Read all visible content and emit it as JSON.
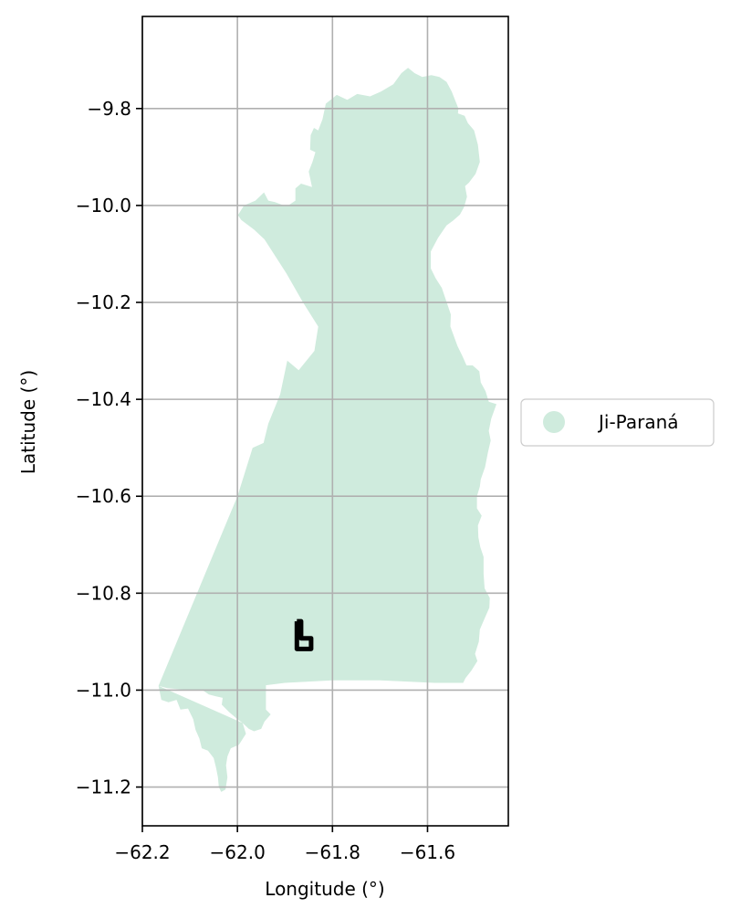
{
  "chart_data": {
    "type": "map",
    "xlabel": "Longitude (°)",
    "ylabel": "Latitude (°)",
    "xlim": [
      -62.2,
      -61.43
    ],
    "ylim": [
      -11.28,
      -9.61
    ],
    "x_ticks": [
      {
        "value": -62.2,
        "label": "−62.2"
      },
      {
        "value": -62.0,
        "label": "−62.0"
      },
      {
        "value": -61.8,
        "label": "−61.8"
      },
      {
        "value": -61.6,
        "label": "−61.6"
      }
    ],
    "y_ticks": [
      {
        "value": -9.8,
        "label": "−9.8"
      },
      {
        "value": -10.0,
        "label": "−10.0"
      },
      {
        "value": -10.2,
        "label": "−10.2"
      },
      {
        "value": -10.4,
        "label": "−10.4"
      },
      {
        "value": -10.6,
        "label": "−10.6"
      },
      {
        "value": -10.8,
        "label": "−10.8"
      },
      {
        "value": -11.0,
        "label": "−11.0"
      },
      {
        "value": -11.2,
        "label": "−11.2"
      }
    ],
    "grid": true,
    "legend": {
      "placement": "right",
      "entries": [
        {
          "label": "Ji-Paraná",
          "color": "#cfebdd"
        }
      ]
    },
    "region": {
      "name": "Ji-Paraná",
      "fill": "#cfebdd",
      "outline": [
        [
          -61.989,
          -11.068
        ],
        [
          -62.0,
          -11.06
        ],
        [
          -62.018,
          -11.045
        ],
        [
          -62.033,
          -11.03
        ],
        [
          -62.031,
          -11.016
        ],
        [
          -62.045,
          -11.013
        ],
        [
          -62.06,
          -11.009
        ],
        [
          -62.075,
          -10.999
        ],
        [
          -62.098,
          -11.001
        ],
        [
          -62.124,
          -10.998
        ],
        [
          -62.148,
          -10.996
        ],
        [
          -62.166,
          -10.991
        ],
        [
          -62.16,
          -11.02
        ],
        [
          -62.145,
          -11.025
        ],
        [
          -62.128,
          -11.02
        ],
        [
          -62.12,
          -11.04
        ],
        [
          -62.104,
          -11.038
        ],
        [
          -62.093,
          -11.06
        ],
        [
          -62.088,
          -11.082
        ],
        [
          -62.08,
          -11.1
        ],
        [
          -62.075,
          -11.12
        ],
        [
          -62.062,
          -11.125
        ],
        [
          -62.05,
          -11.14
        ],
        [
          -62.045,
          -11.16
        ],
        [
          -62.041,
          -11.18
        ],
        [
          -62.039,
          -11.2
        ],
        [
          -62.034,
          -11.21
        ],
        [
          -62.025,
          -11.205
        ],
        [
          -62.021,
          -11.18
        ],
        [
          -62.024,
          -11.155
        ],
        [
          -62.021,
          -11.137
        ],
        [
          -62.014,
          -11.12
        ],
        [
          -61.997,
          -11.113
        ],
        [
          -61.982,
          -11.09
        ],
        [
          -61.989,
          -11.068
        ],
        [
          -62.166,
          -10.991
        ],
        [
          -62.0,
          -10.6
        ],
        [
          -61.968,
          -10.5
        ],
        [
          -61.945,
          -10.49
        ],
        [
          -61.935,
          -10.45
        ],
        [
          -61.91,
          -10.39
        ],
        [
          -61.895,
          -10.32
        ],
        [
          -61.871,
          -10.34
        ],
        [
          -61.838,
          -10.3
        ],
        [
          -61.83,
          -10.25
        ],
        [
          -61.862,
          -10.2
        ],
        [
          -61.897,
          -10.14
        ],
        [
          -61.943,
          -10.07
        ],
        [
          -61.965,
          -10.05
        ],
        [
          -61.992,
          -10.03
        ],
        [
          -61.999,
          -10.02
        ],
        [
          -61.986,
          -10.0
        ],
        [
          -61.962,
          -9.99
        ],
        [
          -61.944,
          -9.973
        ],
        [
          -61.935,
          -9.99
        ],
        [
          -61.921,
          -9.993
        ],
        [
          -61.905,
          -9.999
        ],
        [
          -61.893,
          -10.0
        ],
        [
          -61.878,
          -9.99
        ],
        [
          -61.878,
          -9.965
        ],
        [
          -61.866,
          -9.955
        ],
        [
          -61.843,
          -9.962
        ],
        [
          -61.85,
          -9.93
        ],
        [
          -61.842,
          -9.91
        ],
        [
          -61.836,
          -9.89
        ],
        [
          -61.847,
          -9.885
        ],
        [
          -61.846,
          -9.855
        ],
        [
          -61.839,
          -9.84
        ],
        [
          -61.83,
          -9.845
        ],
        [
          -61.821,
          -9.822
        ],
        [
          -61.814,
          -9.79
        ],
        [
          -61.791,
          -9.772
        ],
        [
          -61.769,
          -9.782
        ],
        [
          -61.748,
          -9.77
        ],
        [
          -61.721,
          -9.775
        ],
        [
          -61.698,
          -9.765
        ],
        [
          -61.672,
          -9.75
        ],
        [
          -61.655,
          -9.727
        ],
        [
          -61.641,
          -9.716
        ],
        [
          -61.627,
          -9.727
        ],
        [
          -61.611,
          -9.735
        ],
        [
          -61.592,
          -9.731
        ],
        [
          -61.575,
          -9.735
        ],
        [
          -61.56,
          -9.745
        ],
        [
          -61.549,
          -9.765
        ],
        [
          -61.535,
          -9.8
        ],
        [
          -61.536,
          -9.81
        ],
        [
          -61.522,
          -9.815
        ],
        [
          -61.515,
          -9.83
        ],
        [
          -61.502,
          -9.845
        ],
        [
          -61.494,
          -9.875
        ],
        [
          -61.49,
          -9.91
        ],
        [
          -61.499,
          -9.935
        ],
        [
          -61.513,
          -9.953
        ],
        [
          -61.521,
          -9.96
        ],
        [
          -61.517,
          -9.982
        ],
        [
          -61.523,
          -10.003
        ],
        [
          -61.532,
          -10.019
        ],
        [
          -61.546,
          -10.031
        ],
        [
          -61.56,
          -10.041
        ],
        [
          -61.578,
          -10.067
        ],
        [
          -61.593,
          -10.095
        ],
        [
          -61.593,
          -10.13
        ],
        [
          -61.583,
          -10.15
        ],
        [
          -61.57,
          -10.17
        ],
        [
          -61.561,
          -10.196
        ],
        [
          -61.551,
          -10.225
        ],
        [
          -61.552,
          -10.25
        ],
        [
          -61.537,
          -10.29
        ],
        [
          -61.527,
          -10.31
        ],
        [
          -61.518,
          -10.33
        ],
        [
          -61.505,
          -10.33
        ],
        [
          -61.491,
          -10.342
        ],
        [
          -61.488,
          -10.365
        ],
        [
          -61.478,
          -10.383
        ],
        [
          -61.471,
          -10.405
        ],
        [
          -61.455,
          -10.41
        ],
        [
          -61.466,
          -10.44
        ],
        [
          -61.471,
          -10.465
        ],
        [
          -61.467,
          -10.485
        ],
        [
          -61.473,
          -10.51
        ],
        [
          -61.479,
          -10.54
        ],
        [
          -61.488,
          -10.565
        ],
        [
          -61.49,
          -10.58
        ],
        [
          -61.496,
          -10.6
        ],
        [
          -61.496,
          -10.625
        ],
        [
          -61.486,
          -10.64
        ],
        [
          -61.494,
          -10.66
        ],
        [
          -61.493,
          -10.685
        ],
        [
          -61.489,
          -10.705
        ],
        [
          -61.482,
          -10.725
        ],
        [
          -61.482,
          -10.76
        ],
        [
          -61.48,
          -10.79
        ],
        [
          -61.469,
          -10.81
        ],
        [
          -61.47,
          -10.83
        ],
        [
          -61.479,
          -10.85
        ],
        [
          -61.49,
          -10.875
        ],
        [
          -61.492,
          -10.9
        ],
        [
          -61.5,
          -10.925
        ],
        [
          -61.495,
          -10.94
        ],
        [
          -61.508,
          -10.96
        ],
        [
          -61.52,
          -10.975
        ],
        [
          -61.525,
          -10.985
        ],
        [
          -61.585,
          -10.985
        ],
        [
          -61.7,
          -10.98
        ],
        [
          -61.8,
          -10.98
        ],
        [
          -61.9,
          -10.985
        ],
        [
          -61.94,
          -10.99
        ],
        [
          -61.94,
          -11.04
        ],
        [
          -61.93,
          -11.05
        ],
        [
          -61.943,
          -11.065
        ],
        [
          -61.95,
          -11.08
        ],
        [
          -61.965,
          -11.085
        ],
        [
          -61.976,
          -11.08
        ],
        [
          -61.989,
          -11.068
        ]
      ]
    },
    "marker": {
      "shape": "L",
      "color": "#000000",
      "outline": [
        [
          -61.875,
          -10.858
        ],
        [
          -61.875,
          -10.915
        ],
        [
          -61.845,
          -10.915
        ],
        [
          -61.845,
          -10.893
        ],
        [
          -61.866,
          -10.893
        ],
        [
          -61.866,
          -10.858
        ],
        [
          -61.875,
          -10.858
        ]
      ]
    }
  }
}
